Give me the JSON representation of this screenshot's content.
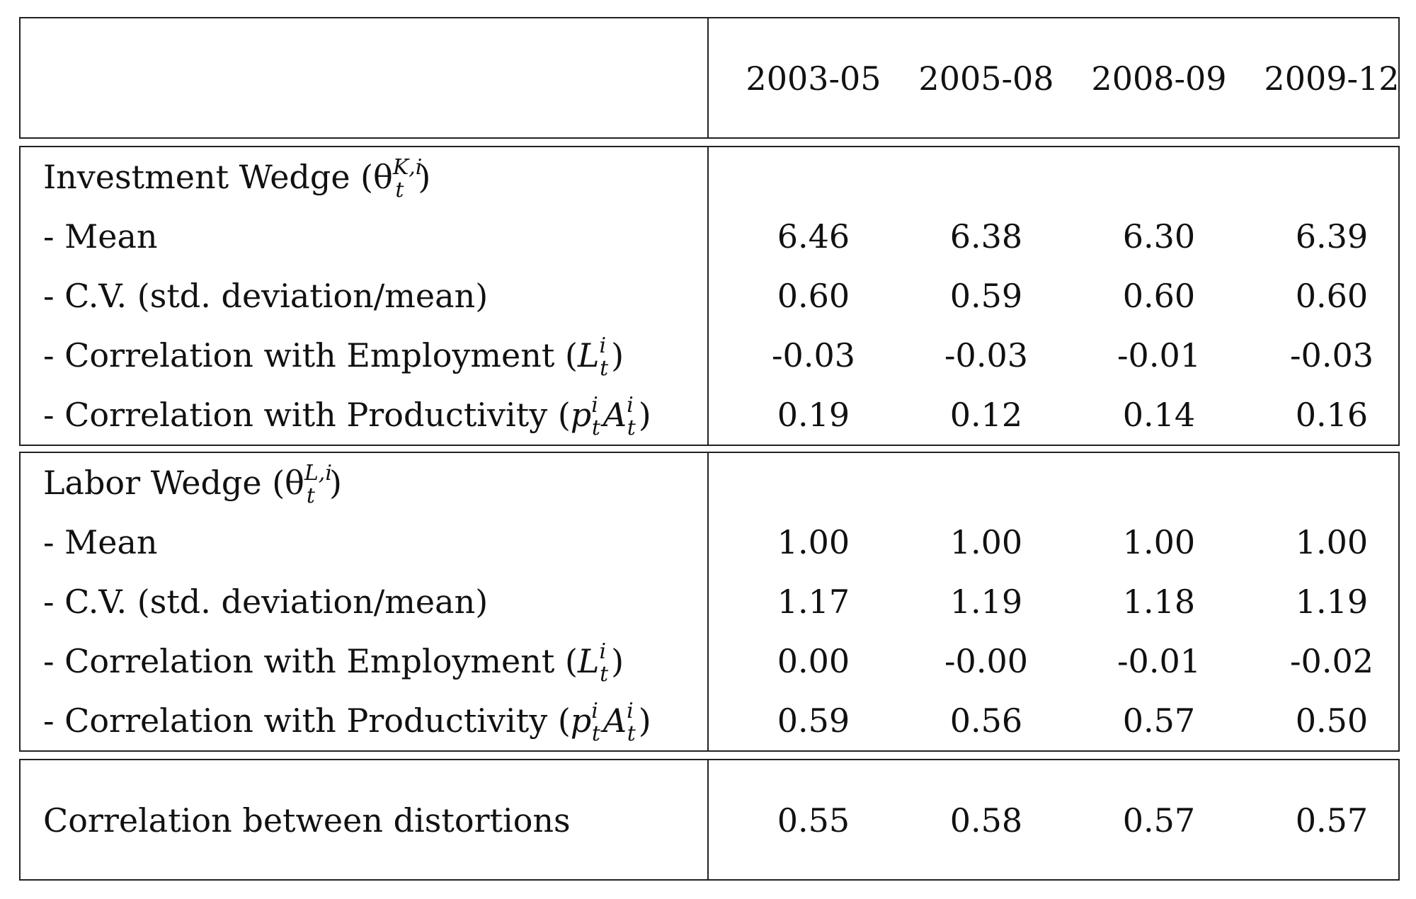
{
  "columns": [
    "2003-05",
    "2005-08",
    "2008-09",
    "2009-12"
  ],
  "investment": {
    "title": "Investment Wedge (θ",
    "title_sup": "K,i",
    "title_sub": "t",
    "title_close": ")",
    "rows": [
      {
        "label": "- Mean",
        "values": [
          "6.46",
          "6.38",
          "6.30",
          "6.39"
        ]
      },
      {
        "label": "- C.V. (std. deviation/mean)",
        "values": [
          "0.60",
          "0.59",
          "0.60",
          "0.60"
        ]
      },
      {
        "label": "- Correlation with Employment (",
        "math": "L",
        "math_sup": "i",
        "math_sub": "t",
        "close": ")",
        "values": [
          "-0.03",
          "-0.03",
          "-0.01",
          "-0.03"
        ]
      },
      {
        "label": "- Correlation with Productivity (",
        "math": "p",
        "math_sup": "i",
        "math_sub": "t",
        "math2": "A",
        "math2_sup": "i",
        "math2_sub": "t",
        "close": ")",
        "values": [
          "0.19",
          "0.12",
          "0.14",
          "0.16"
        ]
      }
    ]
  },
  "labor": {
    "title": "Labor Wedge (θ",
    "title_sup": "L,i",
    "title_sub": "t",
    "title_close": ")",
    "rows": [
      {
        "label": "- Mean",
        "values": [
          "1.00",
          "1.00",
          "1.00",
          "1.00"
        ]
      },
      {
        "label": "- C.V. (std. deviation/mean)",
        "values": [
          "1.17",
          "1.19",
          "1.18",
          "1.19"
        ]
      },
      {
        "label": "- Correlation with Employment (",
        "math": "L",
        "math_sup": "i",
        "math_sub": "t",
        "close": ")",
        "values": [
          "0.00",
          "-0.00",
          "-0.01",
          "-0.02"
        ]
      },
      {
        "label": "- Correlation with Productivity (",
        "math": "p",
        "math_sup": "i",
        "math_sub": "t",
        "math2": "A",
        "math2_sup": "i",
        "math2_sub": "t",
        "close": ")",
        "values": [
          "0.59",
          "0.56",
          "0.57",
          "0.50"
        ]
      }
    ]
  },
  "distortion": {
    "label": "Correlation between distortions",
    "values": [
      "0.55",
      "0.58",
      "0.57",
      "0.57"
    ]
  }
}
